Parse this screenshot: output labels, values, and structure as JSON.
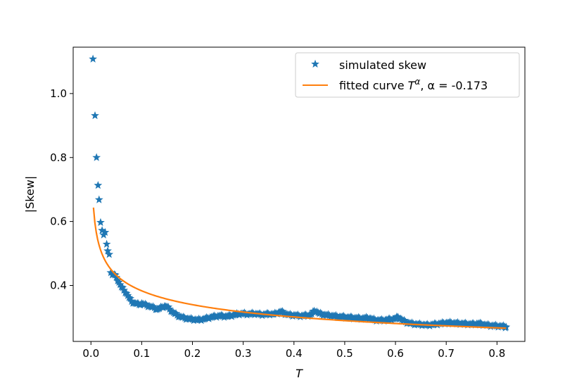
{
  "chart_data": {
    "type": "scatter",
    "title": "",
    "xlabel": "T",
    "ylabel": "|Skew|",
    "xlim": [
      -0.035,
      0.855
    ],
    "ylim": [
      0.225,
      1.145
    ],
    "xticks": [
      0.0,
      0.1,
      0.2,
      0.3,
      0.4,
      0.5,
      0.6,
      0.7,
      0.8
    ],
    "xtick_labels": [
      "0.0",
      "0.1",
      "0.2",
      "0.3",
      "0.4",
      "0.5",
      "0.6",
      "0.7",
      "0.8"
    ],
    "yticks": [
      0.4,
      0.6,
      0.8,
      1.0
    ],
    "ytick_labels": [
      "0.4",
      "0.6",
      "0.8",
      "1.0"
    ],
    "legend_position": "top-right",
    "series": [
      {
        "name": "simulated skew",
        "kind": "scatter",
        "marker": "star",
        "color": "#1f77b4",
        "points": [
          [
            0.004,
            1.108
          ],
          [
            0.008,
            0.931
          ],
          [
            0.011,
            0.8
          ],
          [
            0.014,
            0.713
          ],
          [
            0.016,
            0.668
          ],
          [
            0.019,
            0.597
          ],
          [
            0.022,
            0.572
          ],
          [
            0.025,
            0.558
          ],
          [
            0.028,
            0.566
          ],
          [
            0.031,
            0.529
          ],
          [
            0.033,
            0.508
          ],
          [
            0.036,
            0.497
          ],
          [
            0.039,
            0.44
          ],
          [
            0.042,
            0.433
          ],
          [
            0.046,
            0.434
          ],
          [
            0.05,
            0.425
          ],
          [
            0.055,
            0.41
          ],
          [
            0.06,
            0.395
          ],
          [
            0.065,
            0.385
          ],
          [
            0.07,
            0.375
          ],
          [
            0.075,
            0.362
          ],
          [
            0.08,
            0.35
          ],
          [
            0.085,
            0.345
          ],
          [
            0.09,
            0.343
          ],
          [
            0.095,
            0.34
          ],
          [
            0.1,
            0.344
          ],
          [
            0.105,
            0.34
          ],
          [
            0.11,
            0.338
          ],
          [
            0.115,
            0.335
          ],
          [
            0.12,
            0.332
          ],
          [
            0.125,
            0.33
          ],
          [
            0.13,
            0.325
          ],
          [
            0.135,
            0.328
          ],
          [
            0.14,
            0.332
          ],
          [
            0.145,
            0.335
          ],
          [
            0.15,
            0.333
          ],
          [
            0.155,
            0.326
          ],
          [
            0.16,
            0.318
          ],
          [
            0.165,
            0.312
          ],
          [
            0.17,
            0.307
          ],
          [
            0.175,
            0.303
          ],
          [
            0.18,
            0.3
          ],
          [
            0.185,
            0.298
          ],
          [
            0.19,
            0.296
          ],
          [
            0.195,
            0.295
          ],
          [
            0.2,
            0.294
          ],
          [
            0.205,
            0.293
          ],
          [
            0.21,
            0.292
          ],
          [
            0.215,
            0.293
          ],
          [
            0.22,
            0.294
          ],
          [
            0.225,
            0.296
          ],
          [
            0.23,
            0.298
          ],
          [
            0.235,
            0.3
          ],
          [
            0.24,
            0.302
          ],
          [
            0.245,
            0.303
          ],
          [
            0.25,
            0.304
          ],
          [
            0.255,
            0.305
          ],
          [
            0.26,
            0.304
          ],
          [
            0.265,
            0.303
          ],
          [
            0.27,
            0.304
          ],
          [
            0.275,
            0.305
          ],
          [
            0.28,
            0.307
          ],
          [
            0.285,
            0.309
          ],
          [
            0.29,
            0.31
          ],
          [
            0.295,
            0.311
          ],
          [
            0.3,
            0.312
          ],
          [
            0.305,
            0.311
          ],
          [
            0.31,
            0.31
          ],
          [
            0.315,
            0.311
          ],
          [
            0.32,
            0.312
          ],
          [
            0.325,
            0.311
          ],
          [
            0.33,
            0.31
          ],
          [
            0.335,
            0.309
          ],
          [
            0.34,
            0.309
          ],
          [
            0.345,
            0.31
          ],
          [
            0.35,
            0.311
          ],
          [
            0.355,
            0.31
          ],
          [
            0.36,
            0.31
          ],
          [
            0.365,
            0.312
          ],
          [
            0.37,
            0.316
          ],
          [
            0.375,
            0.318
          ],
          [
            0.38,
            0.314
          ],
          [
            0.385,
            0.31
          ],
          [
            0.39,
            0.308
          ],
          [
            0.395,
            0.307
          ],
          [
            0.4,
            0.307
          ],
          [
            0.405,
            0.306
          ],
          [
            0.41,
            0.305
          ],
          [
            0.415,
            0.305
          ],
          [
            0.42,
            0.306
          ],
          [
            0.425,
            0.306
          ],
          [
            0.43,
            0.307
          ],
          [
            0.435,
            0.311
          ],
          [
            0.44,
            0.32
          ],
          [
            0.445,
            0.318
          ],
          [
            0.45,
            0.312
          ],
          [
            0.455,
            0.31
          ],
          [
            0.46,
            0.308
          ],
          [
            0.465,
            0.307
          ],
          [
            0.47,
            0.306
          ],
          [
            0.475,
            0.305
          ],
          [
            0.48,
            0.304
          ],
          [
            0.485,
            0.303
          ],
          [
            0.49,
            0.302
          ],
          [
            0.495,
            0.302
          ],
          [
            0.5,
            0.301
          ],
          [
            0.505,
            0.3
          ],
          [
            0.51,
            0.3
          ],
          [
            0.515,
            0.299
          ],
          [
            0.52,
            0.298
          ],
          [
            0.525,
            0.298
          ],
          [
            0.53,
            0.297
          ],
          [
            0.535,
            0.297
          ],
          [
            0.54,
            0.298
          ],
          [
            0.545,
            0.298
          ],
          [
            0.55,
            0.297
          ],
          [
            0.555,
            0.294
          ],
          [
            0.56,
            0.292
          ],
          [
            0.565,
            0.291
          ],
          [
            0.57,
            0.291
          ],
          [
            0.575,
            0.291
          ],
          [
            0.58,
            0.292
          ],
          [
            0.585,
            0.293
          ],
          [
            0.59,
            0.294
          ],
          [
            0.595,
            0.295
          ],
          [
            0.6,
            0.297
          ],
          [
            0.605,
            0.301
          ],
          [
            0.61,
            0.296
          ],
          [
            0.615,
            0.29
          ],
          [
            0.62,
            0.286
          ],
          [
            0.625,
            0.283
          ],
          [
            0.63,
            0.281
          ],
          [
            0.635,
            0.28
          ],
          [
            0.64,
            0.279
          ],
          [
            0.645,
            0.278
          ],
          [
            0.65,
            0.278
          ],
          [
            0.655,
            0.277
          ],
          [
            0.66,
            0.276
          ],
          [
            0.665,
            0.276
          ],
          [
            0.67,
            0.277
          ],
          [
            0.675,
            0.278
          ],
          [
            0.68,
            0.279
          ],
          [
            0.685,
            0.28
          ],
          [
            0.69,
            0.281
          ],
          [
            0.695,
            0.282
          ],
          [
            0.7,
            0.283
          ],
          [
            0.705,
            0.283
          ],
          [
            0.71,
            0.283
          ],
          [
            0.715,
            0.282
          ],
          [
            0.72,
            0.282
          ],
          [
            0.725,
            0.281
          ],
          [
            0.73,
            0.281
          ],
          [
            0.735,
            0.28
          ],
          [
            0.74,
            0.28
          ],
          [
            0.745,
            0.279
          ],
          [
            0.75,
            0.279
          ],
          [
            0.755,
            0.279
          ],
          [
            0.76,
            0.28
          ],
          [
            0.765,
            0.281
          ],
          [
            0.77,
            0.279
          ],
          [
            0.775,
            0.277
          ],
          [
            0.78,
            0.276
          ],
          [
            0.785,
            0.275
          ],
          [
            0.79,
            0.274
          ],
          [
            0.795,
            0.274
          ],
          [
            0.8,
            0.273
          ],
          [
            0.805,
            0.273
          ],
          [
            0.81,
            0.272
          ],
          [
            0.815,
            0.271
          ],
          [
            0.818,
            0.27
          ]
        ]
      },
      {
        "name": "fitted curve",
        "kind": "line",
        "color": "#ff7f0e",
        "formula": "0.2573 * T^alpha",
        "coefficient": 0.2573,
        "alpha": -0.173,
        "x_range": [
          0.005,
          0.818
        ]
      }
    ],
    "legend": {
      "items": [
        {
          "label": "simulated skew",
          "marker": "star",
          "color": "#1f77b4"
        },
        {
          "label_prefix": "fitted curve ",
          "label_var": "T",
          "label_sup": "α",
          "label_suffix": ", α = -0.173",
          "marker": "line",
          "color": "#ff7f0e"
        }
      ]
    }
  }
}
